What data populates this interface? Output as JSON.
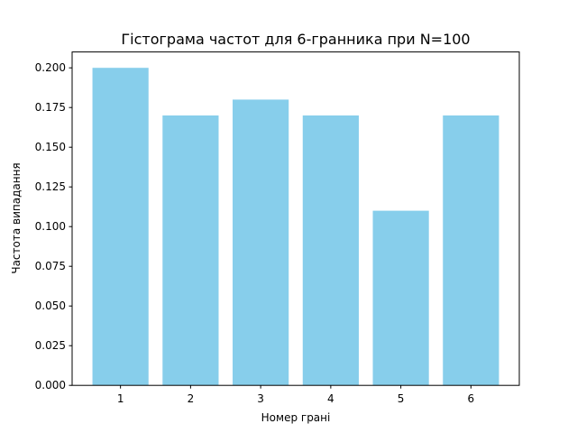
{
  "chart_data": {
    "type": "bar",
    "title": "Гістограма частот для 6-гранника при N=100",
    "xlabel": "Номер грані",
    "ylabel": "Частота випадання",
    "categories": [
      "1",
      "2",
      "3",
      "4",
      "5",
      "6"
    ],
    "values": [
      0.2,
      0.17,
      0.18,
      0.17,
      0.11,
      0.17
    ],
    "ylim": [
      0,
      0.21
    ],
    "yticks": [
      "0.000",
      "0.025",
      "0.050",
      "0.075",
      "0.100",
      "0.125",
      "0.150",
      "0.175",
      "0.200"
    ],
    "bar_color": "#87CEEB",
    "grid": false,
    "legend": "none"
  }
}
